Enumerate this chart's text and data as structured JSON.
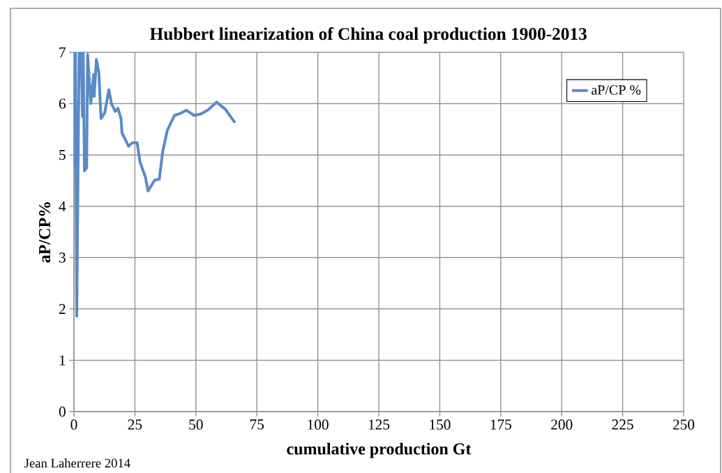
{
  "chart_data": {
    "type": "line",
    "title": "Hubbert linearization of China coal production 1900-2013",
    "xlabel": "cumulative production Gt",
    "ylabel": "aP/CP%",
    "annotations": [
      "Jean Laherrere 2014"
    ],
    "series": [
      {
        "name": "aP/CP %",
        "color": "#5a8ac6",
        "x": [
          0.3,
          0.4,
          0.6,
          0.8,
          1.15,
          2.1,
          3.0,
          3.5,
          3.8,
          4.3,
          5.2,
          5.6,
          6.9,
          8.1,
          8.3,
          9.2,
          10.2,
          11.1,
          12.6,
          14.3,
          15.4,
          16.9,
          18.0,
          19.3,
          19.7,
          22.4,
          24.0,
          25.9,
          27.1,
          29.3,
          30.4,
          33.1,
          35.0,
          36.4,
          38.3,
          41.2,
          43.6,
          46.1,
          49.3,
          52.1,
          55.0,
          58.5,
          62.1,
          66.0
        ],
        "values": [
          7,
          4.8,
          7,
          5.16,
          1.86,
          7,
          7,
          5.75,
          7,
          4.69,
          4.75,
          6.96,
          6.0,
          6.57,
          6.14,
          6.86,
          6.61,
          5.71,
          5.82,
          6.27,
          6.0,
          5.85,
          5.91,
          5.71,
          5.43,
          5.17,
          5.24,
          5.24,
          4.86,
          4.57,
          4.3,
          4.51,
          4.53,
          5.07,
          5.48,
          5.77,
          5.81,
          5.87,
          5.77,
          5.8,
          5.88,
          6.03,
          5.89,
          5.63
        ]
      }
    ],
    "xlim": [
      0,
      250
    ],
    "ylim": [
      0,
      7
    ],
    "xticks": [
      0,
      25,
      50,
      75,
      100,
      125,
      150,
      175,
      200,
      225,
      250
    ],
    "yticks": [
      0,
      1,
      2,
      3,
      4,
      5,
      6,
      7
    ],
    "grid": true,
    "legend": "top right",
    "marker": "none",
    "line_style": "solid"
  }
}
